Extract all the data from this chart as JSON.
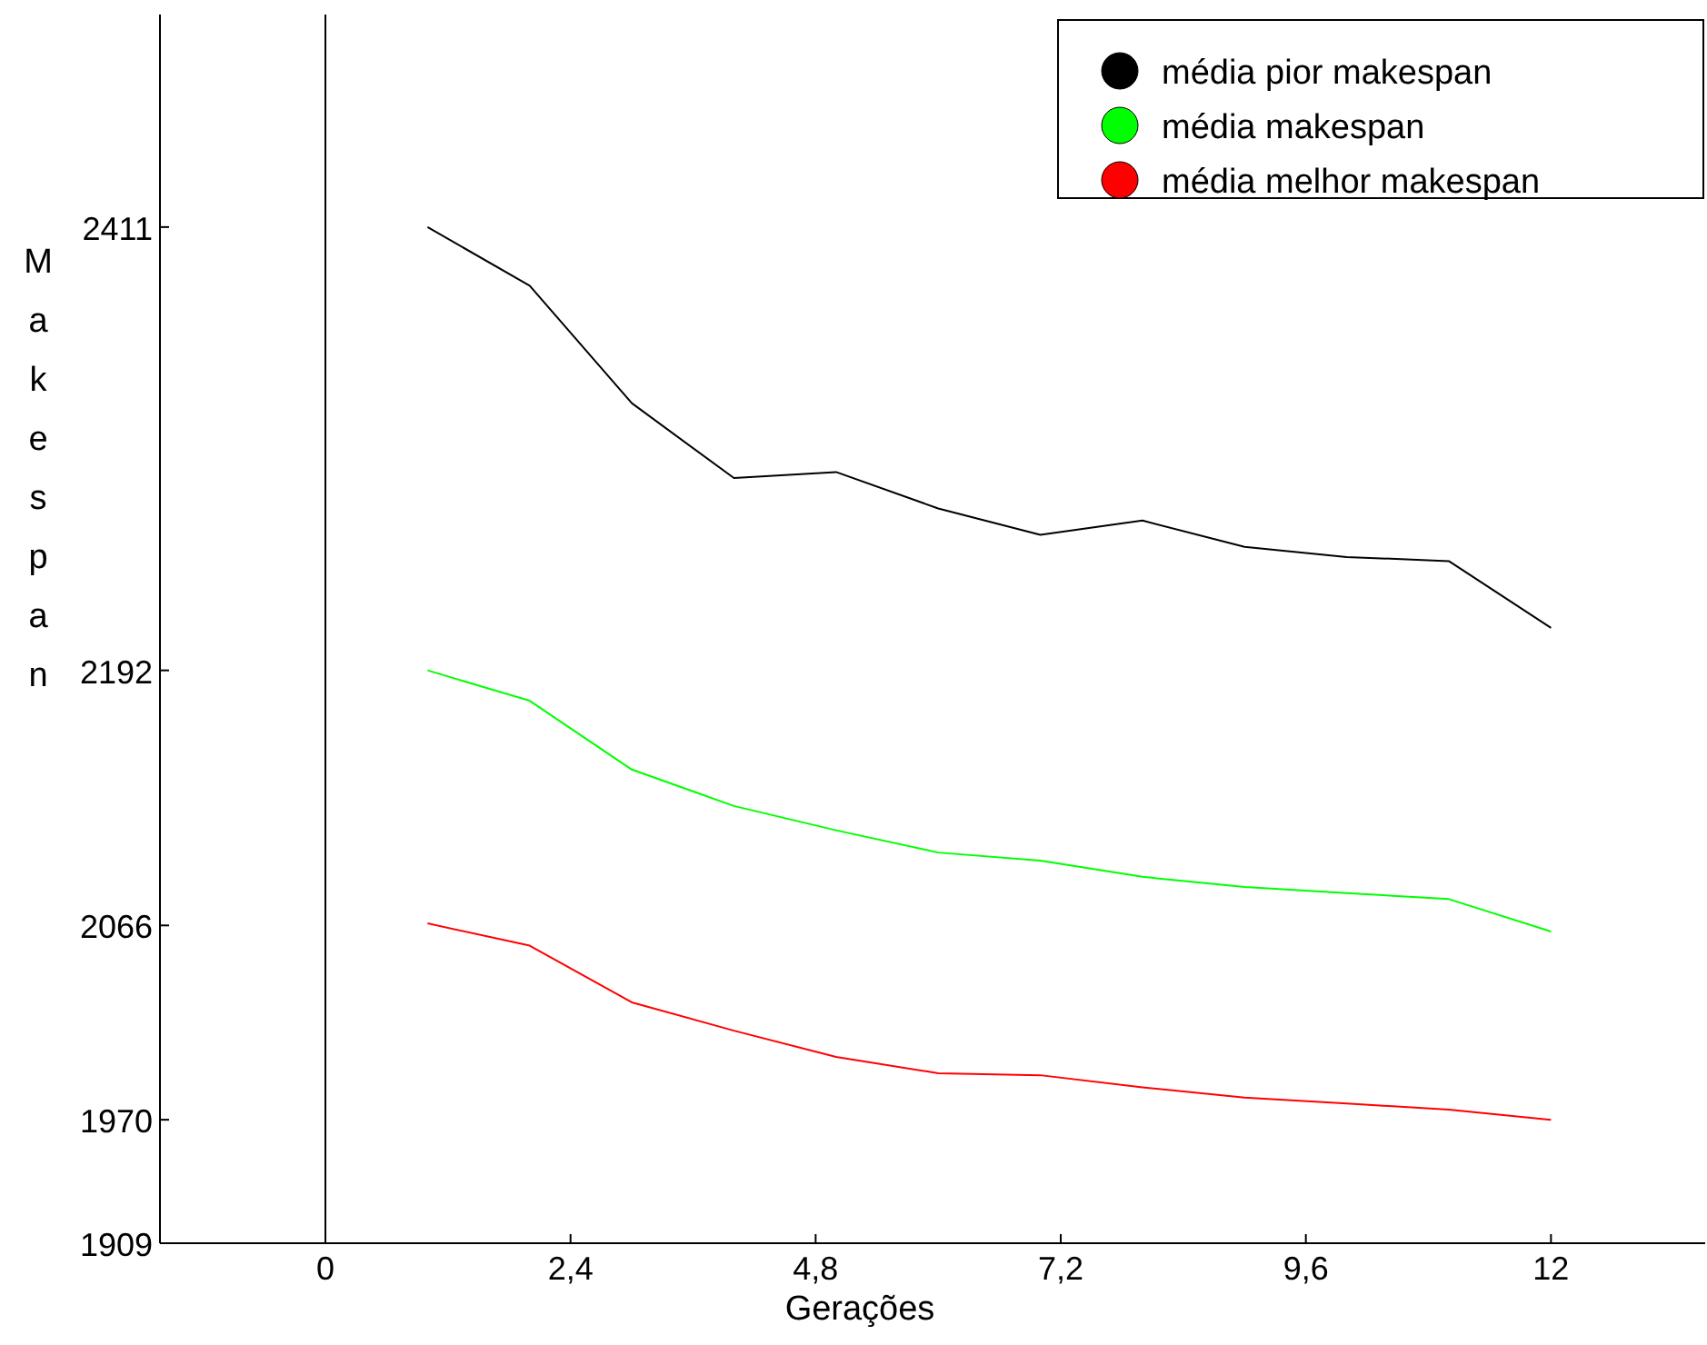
{
  "chart_data": {
    "type": "line",
    "xlabel": "Gerações",
    "ylabel": "Makespan",
    "x": [
      1,
      2,
      3,
      4,
      5,
      6,
      7,
      8,
      9,
      10,
      11,
      12
    ],
    "xlim": [
      -1.62,
      13.51
    ],
    "ylim": [
      1909,
      2516
    ],
    "xticks": [
      0,
      {
        "value": 2.4,
        "label": "2,4"
      },
      {
        "value": 4.8,
        "label": "4,8"
      },
      {
        "value": 7.2,
        "label": "7,2"
      },
      {
        "value": 9.6,
        "label": "9,6"
      },
      12
    ],
    "yticks": [
      1909,
      1970,
      2066,
      2192,
      2411
    ],
    "series": [
      {
        "name": "média pior makespan",
        "color": "#000000",
        "values": [
          2411,
          2382,
          2324,
          2287,
          2290,
          2272,
          2259,
          2266,
          2253,
          2248,
          2246,
          2213
        ]
      },
      {
        "name": "média makespan",
        "color": "#00ff00",
        "values": [
          2192,
          2177,
          2143,
          2125,
          2113,
          2102,
          2098,
          2090,
          2085,
          2082,
          2079,
          2063
        ]
      },
      {
        "name": "média melhor makespan",
        "color": "#ff0000",
        "values": [
          2067,
          2056,
          2028,
          2014,
          2001,
          1993,
          1992,
          1986,
          1981,
          1978,
          1975,
          1970
        ]
      }
    ],
    "ref_lines": [
      {
        "axis": "x",
        "value": 0,
        "color": "#000000"
      }
    ],
    "legend": "top right",
    "grid": false,
    "marker": "none",
    "line_style": "solid"
  }
}
